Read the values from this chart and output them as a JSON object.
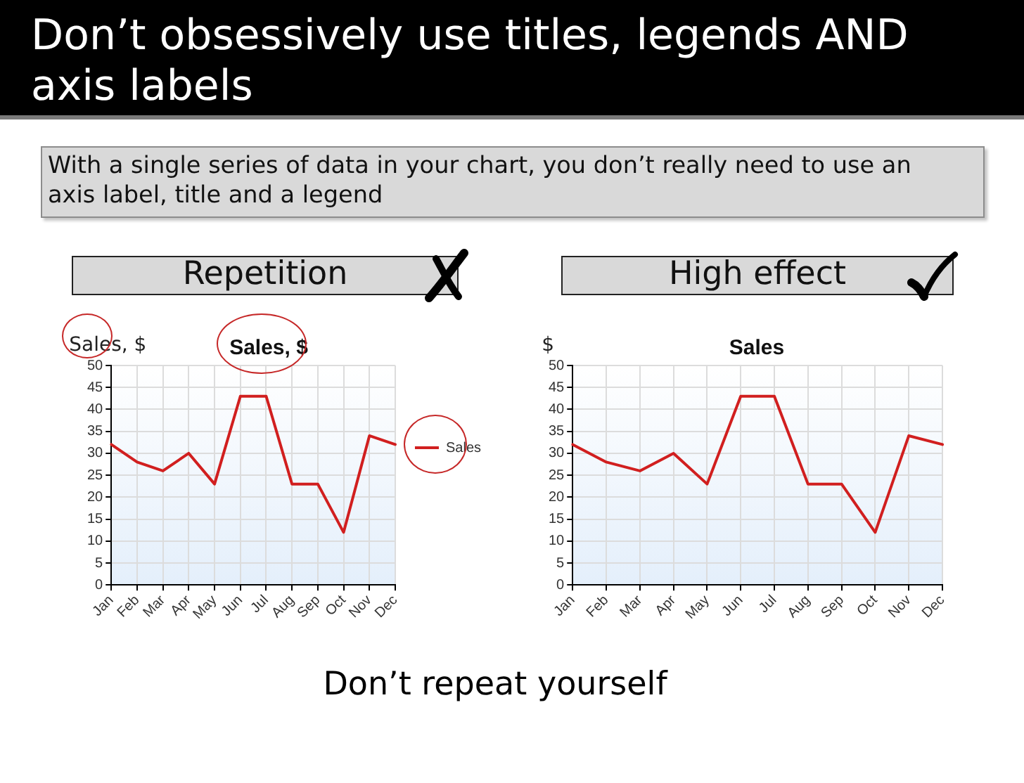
{
  "chart_data": [
    {
      "type": "other",
      "title": "Don’t obsessively use titles, legends AND axis labels",
      "subtitle": "With a single series of data in your chart, you don’t really need to use an axis label, title and a legend",
      "annotations": [
        "Don’t repeat yourself"
      ]
    },
    {
      "type": "line",
      "title": "Sales, $",
      "ylabel": "Sales, $",
      "annotations": [
        "Repetition"
      ],
      "categories": [
        "Jan",
        "Feb",
        "Mar",
        "Apr",
        "May",
        "Jun",
        "Jul",
        "Aug",
        "Sep",
        "Oct",
        "Nov",
        "Dec"
      ],
      "series": [
        {
          "name": "Sales",
          "color": "#d11f1f",
          "values": [
            32,
            28,
            26,
            30,
            23,
            43,
            43,
            23,
            23,
            12,
            34,
            32
          ]
        }
      ],
      "ylim": [
        0,
        50
      ],
      "yticks": [
        0,
        5,
        10,
        15,
        20,
        25,
        30,
        35,
        40,
        45,
        50
      ],
      "grid": true,
      "legend": "right"
    },
    {
      "type": "line",
      "title": "Sales",
      "ylabel": "$",
      "annotations": [
        "High effect"
      ],
      "categories": [
        "Jan",
        "Feb",
        "Mar",
        "Apr",
        "May",
        "Jun",
        "Jul",
        "Aug",
        "Sep",
        "Oct",
        "Nov",
        "Dec"
      ],
      "series": [
        {
          "color": "#d11f1f",
          "values": [
            32,
            28,
            26,
            30,
            23,
            43,
            43,
            23,
            23,
            12,
            34,
            32
          ]
        }
      ],
      "ylim": [
        0,
        50
      ],
      "yticks": [
        0,
        5,
        10,
        15,
        20,
        25,
        30,
        35,
        40,
        45,
        50
      ],
      "grid": true
    }
  ]
}
